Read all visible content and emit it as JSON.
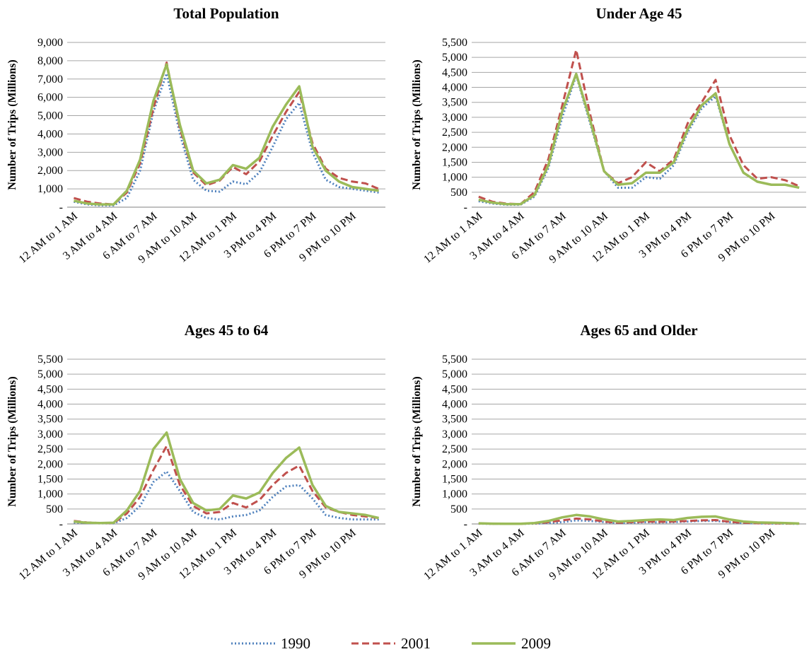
{
  "chart_data": [
    {
      "type": "line",
      "title": "Total Population",
      "y_label": "Number of Trips (Millions)",
      "categories": [
        "12 AM to 1 AM",
        null,
        null,
        "3 AM to 4 AM",
        null,
        null,
        "6 AM to 7 AM",
        null,
        null,
        "9 AM to 10 AM",
        null,
        null,
        "12 AM to 1 PM",
        null,
        null,
        "3 PM to 4 PM",
        null,
        null,
        "6 PM to 7 PM",
        null,
        null,
        "9 PM to 10 PM",
        null,
        null
      ],
      "ylim": [
        0,
        9000
      ],
      "yticks": [
        {
          "value": 0,
          "label": "-"
        },
        {
          "value": 1000,
          "label": "1,000"
        },
        {
          "value": 2000,
          "label": "2,000"
        },
        {
          "value": 3000,
          "label": "3,000"
        },
        {
          "value": 4000,
          "label": "4,000"
        },
        {
          "value": 5000,
          "label": "5,000"
        },
        {
          "value": 6000,
          "label": "6,000"
        },
        {
          "value": 7000,
          "label": "7,000"
        },
        {
          "value": 8000,
          "label": "8,000"
        },
        {
          "value": 9000,
          "label": "9,000"
        }
      ],
      "grid": true,
      "series": [
        {
          "name": "1990",
          "color": "#4f81bd",
          "style": "dotted",
          "values": [
            300,
            150,
            100,
            100,
            500,
            2000,
            5200,
            7300,
            4000,
            1500,
            900,
            850,
            1400,
            1250,
            1900,
            3300,
            4800,
            5700,
            3000,
            1500,
            1100,
            1000,
            900,
            800
          ]
        },
        {
          "name": "2001",
          "color": "#c0504d",
          "style": "dashed",
          "values": [
            500,
            300,
            200,
            150,
            800,
            2400,
            5400,
            7900,
            4300,
            1900,
            1200,
            1450,
            2200,
            1800,
            2500,
            3900,
            5200,
            6300,
            3500,
            2100,
            1600,
            1400,
            1300,
            1000
          ]
        },
        {
          "name": "2009",
          "color": "#9bbb59",
          "style": "solid",
          "values": [
            350,
            200,
            150,
            150,
            900,
            2600,
            5800,
            7800,
            4500,
            2000,
            1300,
            1500,
            2300,
            2100,
            2700,
            4400,
            5600,
            6600,
            3300,
            2000,
            1400,
            1100,
            1000,
            900
          ]
        }
      ]
    },
    {
      "type": "line",
      "title": "Under Age 45",
      "y_label": "Number of Trips (Millions)",
      "categories": [
        "12 AM to 1 AM",
        null,
        null,
        "3 AM to 4 AM",
        null,
        null,
        "6 AM to 7 AM",
        null,
        null,
        "9 AM to 10 AM",
        null,
        null,
        "12 AM to 1 PM",
        null,
        null,
        "3 PM to 4 PM",
        null,
        null,
        "6 PM to 7 PM",
        null,
        null,
        "9 PM to 10 PM",
        null,
        null
      ],
      "ylim": [
        0,
        5500
      ],
      "yticks": [
        {
          "value": 0,
          "label": "-"
        },
        500,
        {
          "value": 1000,
          "label": "1,000"
        },
        {
          "value": 1500,
          "label": "1,500"
        },
        {
          "value": 2000,
          "label": "2,000"
        },
        {
          "value": 2500,
          "label": "2,500"
        },
        {
          "value": 3000,
          "label": "3,000"
        },
        {
          "value": 3500,
          "label": "3,500"
        },
        {
          "value": 4000,
          "label": "4,000"
        },
        {
          "value": 4500,
          "label": "4,500"
        },
        {
          "value": 5000,
          "label": "5,000"
        },
        {
          "value": 5500,
          "label": "5,500"
        }
      ],
      "grid": true,
      "series": [
        {
          "name": "1990",
          "color": "#4f81bd",
          "style": "dotted",
          "values": [
            200,
            120,
            80,
            80,
            350,
            1300,
            3000,
            4400,
            2800,
            1200,
            650,
            650,
            1000,
            950,
            1400,
            2500,
            3300,
            3700,
            2100,
            1150,
            850,
            750,
            750,
            650
          ]
        },
        {
          "name": "2001",
          "color": "#c0504d",
          "style": "dashed",
          "values": [
            350,
            180,
            120,
            100,
            500,
            1600,
            3400,
            5250,
            3100,
            1200,
            800,
            1000,
            1500,
            1200,
            1600,
            2800,
            3500,
            4250,
            2400,
            1400,
            950,
            1000,
            900,
            700
          ]
        },
        {
          "name": "2009",
          "color": "#9bbb59",
          "style": "solid",
          "values": [
            250,
            150,
            100,
            100,
            400,
            1400,
            3200,
            4450,
            2900,
            1200,
            750,
            800,
            1150,
            1150,
            1500,
            2600,
            3400,
            3800,
            2100,
            1150,
            850,
            750,
            750,
            650
          ]
        }
      ]
    },
    {
      "type": "line",
      "title": "Ages 45 to 64",
      "y_label": "Number of Trips (Millions)",
      "categories": [
        "12 AM to 1 AM",
        null,
        null,
        "3 AM to 4 AM",
        null,
        null,
        "6 AM to 7 AM",
        null,
        null,
        "9 AM to 10 AM",
        null,
        null,
        "12 AM to 1 PM",
        null,
        null,
        "3 PM to 4 PM",
        null,
        null,
        "6 PM to 7 PM",
        null,
        null,
        "9 PM to 10 PM",
        null,
        null
      ],
      "ylim": [
        0,
        5500
      ],
      "yticks": [
        {
          "value": 0,
          "label": "-"
        },
        500,
        {
          "value": 1000,
          "label": "1,000"
        },
        {
          "value": 1500,
          "label": "1,500"
        },
        {
          "value": 2000,
          "label": "2,000"
        },
        {
          "value": 2500,
          "label": "2,500"
        },
        {
          "value": 3000,
          "label": "3,000"
        },
        {
          "value": 3500,
          "label": "3,500"
        },
        {
          "value": 4000,
          "label": "4,000"
        },
        {
          "value": 4500,
          "label": "4,500"
        },
        {
          "value": 5000,
          "label": "5,000"
        },
        {
          "value": 5500,
          "label": "5,500"
        }
      ],
      "grid": true,
      "series": [
        {
          "name": "1990",
          "color": "#4f81bd",
          "style": "dotted",
          "values": [
            50,
            30,
            20,
            20,
            200,
            600,
            1400,
            1750,
            1100,
            400,
            200,
            150,
            250,
            300,
            450,
            900,
            1250,
            1300,
            850,
            300,
            200,
            150,
            150,
            150
          ]
        },
        {
          "name": "2001",
          "color": "#c0504d",
          "style": "dashed",
          "values": [
            100,
            50,
            30,
            30,
            350,
            900,
            1800,
            2600,
            1300,
            600,
            350,
            400,
            700,
            550,
            800,
            1300,
            1700,
            1950,
            1100,
            550,
            400,
            300,
            250,
            200
          ]
        },
        {
          "name": "2009",
          "color": "#9bbb59",
          "style": "solid",
          "values": [
            80,
            40,
            30,
            40,
            450,
            1100,
            2500,
            3050,
            1500,
            700,
            450,
            500,
            950,
            850,
            1050,
            1700,
            2200,
            2550,
            1300,
            600,
            400,
            350,
            300,
            200
          ]
        }
      ]
    },
    {
      "type": "line",
      "title": "Ages 65 and Older",
      "y_label": "Number of Trips (Millions)",
      "categories": [
        "12 AM to 1 AM",
        null,
        null,
        "3 AM to 4 AM",
        null,
        null,
        "6 AM to 7 AM",
        null,
        null,
        "9 AM to 10 AM",
        null,
        null,
        "12 AM to 1 PM",
        null,
        null,
        "3 PM to 4 PM",
        null,
        null,
        "6 PM to 7 PM",
        null,
        null,
        "9 PM to 10 PM",
        null,
        null
      ],
      "ylim": [
        0,
        5500
      ],
      "yticks": [
        {
          "value": 0,
          "label": "-"
        },
        500,
        {
          "value": 1000,
          "label": "1,000"
        },
        {
          "value": 1500,
          "label": "1,500"
        },
        {
          "value": 2000,
          "label": "2,000"
        },
        {
          "value": 2500,
          "label": "2,500"
        },
        {
          "value": 3000,
          "label": "3,000"
        },
        {
          "value": 3500,
          "label": "3,500"
        },
        {
          "value": 4000,
          "label": "4,000"
        },
        {
          "value": 4500,
          "label": "4,500"
        },
        {
          "value": 5000,
          "label": "5,000"
        },
        {
          "value": 5500,
          "label": "5,500"
        }
      ],
      "grid": true,
      "series": [
        {
          "name": "1990",
          "color": "#4f81bd",
          "style": "dotted",
          "values": [
            10,
            5,
            5,
            5,
            10,
            30,
            60,
            120,
            100,
            60,
            30,
            40,
            60,
            50,
            60,
            80,
            100,
            100,
            60,
            30,
            20,
            15,
            10,
            5
          ]
        },
        {
          "name": "2001",
          "color": "#c0504d",
          "style": "dashed",
          "values": [
            15,
            8,
            5,
            5,
            20,
            60,
            120,
            180,
            150,
            80,
            40,
            60,
            80,
            70,
            80,
            100,
            120,
            130,
            70,
            40,
            25,
            20,
            15,
            10
          ]
        },
        {
          "name": "2009",
          "color": "#9bbb59",
          "style": "solid",
          "values": [
            20,
            10,
            5,
            5,
            30,
            100,
            220,
            300,
            250,
            150,
            80,
            100,
            130,
            150,
            130,
            200,
            240,
            250,
            150,
            80,
            50,
            40,
            30,
            15
          ]
        }
      ]
    }
  ]
}
